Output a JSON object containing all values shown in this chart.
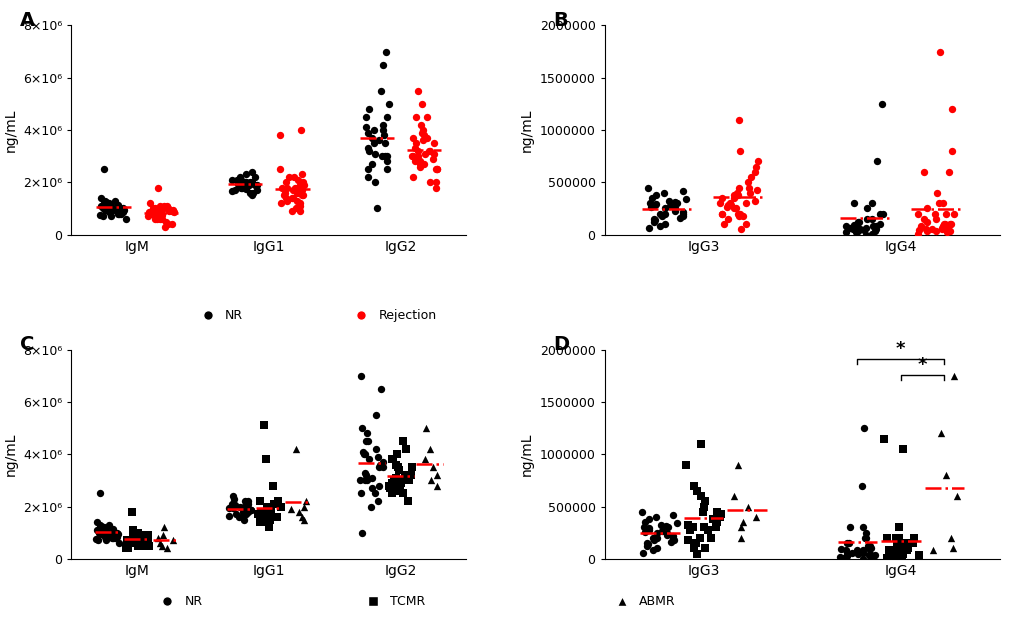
{
  "panel_A": {
    "title": "A",
    "ylabel": "ng/mL",
    "ylim": [
      0,
      8000000
    ],
    "yticks": [
      0,
      2000000,
      4000000,
      6000000,
      8000000
    ],
    "ytick_labels": [
      "0",
      "2×10⁶",
      "4×10⁶",
      "6×10⁶",
      "8×10⁶"
    ],
    "groups": [
      "IgM",
      "IgG1",
      "IgG2"
    ],
    "NR_data": {
      "IgM": [
        900000,
        800000,
        750000,
        1100000,
        1200000,
        1000000,
        950000,
        850000,
        1050000,
        1300000,
        700000,
        1150000,
        1250000,
        900000,
        1400000,
        800000,
        1100000,
        950000,
        2500000,
        1050000,
        800000,
        600000,
        1200000,
        1000000,
        850000,
        950000,
        700000,
        1100000,
        1300000,
        1000000
      ],
      "IgG1": [
        1800000,
        2000000,
        1900000,
        2100000,
        2200000,
        1700000,
        2000000,
        1850000,
        2300000,
        1950000,
        1600000,
        2100000,
        1750000,
        1650000,
        2000000,
        2050000,
        1900000,
        1800000,
        2400000,
        1500000,
        2200000,
        1700000,
        2050000,
        2000000,
        1950000,
        1850000,
        1600000,
        1900000,
        2100000,
        1800000
      ],
      "IgG2": [
        2000000,
        3000000,
        4000000,
        4500000,
        3500000,
        5000000,
        2500000,
        3200000,
        4200000,
        5500000,
        2800000,
        7000000,
        6500000,
        3000000,
        4800000,
        3700000,
        4000000,
        3500000,
        3900000,
        3300000,
        4100000,
        2700000,
        3800000,
        2500000,
        4500000,
        3000000,
        2200000,
        3600000,
        3100000,
        1000000
      ]
    },
    "Rejection_data": {
      "IgM": [
        800000,
        1000000,
        900000,
        1100000,
        850000,
        950000,
        700000,
        1200000,
        600000,
        750000,
        500000,
        900000,
        1800000,
        850000,
        1000000,
        400000,
        800000,
        600000,
        900000,
        700000,
        1100000,
        950000,
        800000,
        750000,
        900000,
        850000,
        600000,
        400000,
        300000,
        950000,
        1000000,
        700000,
        850000,
        1100000,
        600000
      ],
      "IgG1": [
        1800000,
        2000000,
        1500000,
        4000000,
        3800000,
        1700000,
        2200000,
        1400000,
        1800000,
        1600000,
        1300000,
        2100000,
        1900000,
        1500000,
        1200000,
        2500000,
        1800000,
        1600000,
        1400000,
        2000000,
        1700000,
        1900000,
        2200000,
        1500000,
        1100000,
        900000,
        1000000,
        2300000,
        1400000,
        1700000,
        1300000,
        1600000,
        1800000,
        1200000,
        900000
      ],
      "IgG2": [
        3000000,
        4000000,
        5000000,
        5500000,
        3500000,
        4500000,
        3000000,
        2500000,
        3200000,
        3800000,
        2000000,
        4200000,
        3700000,
        2800000,
        3300000,
        2500000,
        3100000,
        2700000,
        3900000,
        3600000,
        2000000,
        3200000,
        4500000,
        2800000,
        3500000,
        2200000,
        1800000,
        3000000,
        3700000,
        3200000,
        2500000,
        2900000,
        3100000,
        2700000,
        2600000
      ]
    }
  },
  "panel_B": {
    "title": "B",
    "ylabel": "ng/mL",
    "ylim": [
      0,
      2000000
    ],
    "yticks": [
      0,
      500000,
      1000000,
      1500000,
      2000000
    ],
    "ytick_labels": [
      "0",
      "500000",
      "1000000",
      "1500000",
      "2000000"
    ],
    "groups": [
      "IgG3",
      "IgG4"
    ],
    "NR_data": {
      "IgG3": [
        250000,
        300000,
        450000,
        200000,
        150000,
        350000,
        280000,
        180000,
        400000,
        320000,
        100000,
        250000,
        380000,
        220000,
        60000,
        310000,
        200000,
        270000,
        120000,
        290000,
        160000,
        340000,
        80000,
        230000,
        420000,
        180000,
        260000,
        300000,
        140000,
        200000
      ],
      "IgG4": [
        0,
        50000,
        100000,
        80000,
        30000,
        200000,
        60000,
        40000,
        150000,
        90000,
        700000,
        120000,
        250000,
        20000,
        10000,
        300000,
        1250000,
        50000,
        30000,
        80000,
        200000,
        60000,
        100000,
        40000,
        150000,
        20000,
        80000,
        300000,
        50000,
        120000
      ]
    },
    "Rejection_data": {
      "IgG3": [
        350000,
        400000,
        250000,
        500000,
        700000,
        800000,
        1100000,
        200000,
        300000,
        450000,
        100000,
        550000,
        380000,
        200000,
        280000,
        600000,
        150000,
        400000,
        650000,
        300000,
        180000,
        430000,
        280000,
        50000,
        320000,
        100000,
        200000,
        450000,
        300000,
        380000,
        260000,
        180000,
        350000,
        200000,
        250000
      ],
      "IgG4": [
        1750000,
        1200000,
        800000,
        600000,
        200000,
        100000,
        50000,
        400000,
        300000,
        600000,
        250000,
        100000,
        50000,
        30000,
        20000,
        10000,
        80000,
        200000,
        50000,
        30000,
        100000,
        200000,
        300000,
        150000,
        80000,
        30000,
        50000,
        100000,
        200000,
        150000,
        80000,
        60000,
        120000,
        40000,
        70000
      ]
    }
  },
  "panel_C": {
    "title": "C",
    "ylabel": "ng/mL",
    "ylim": [
      0,
      8000000
    ],
    "yticks": [
      0,
      2000000,
      4000000,
      6000000,
      8000000
    ],
    "ytick_labels": [
      "0",
      "2×10⁶",
      "4×10⁶",
      "6×10⁶",
      "8×10⁶"
    ],
    "groups": [
      "IgM",
      "IgG1",
      "IgG2"
    ],
    "NR_data": {
      "IgM": [
        900000,
        800000,
        750000,
        1100000,
        1200000,
        1000000,
        950000,
        850000,
        1050000,
        1300000,
        700000,
        1150000,
        1250000,
        900000,
        1400000,
        800000,
        1100000,
        950000,
        2500000,
        1050000,
        800000,
        600000,
        1200000,
        1000000,
        850000,
        950000,
        700000,
        1100000,
        1300000,
        1000000
      ],
      "IgG1": [
        1800000,
        2000000,
        1900000,
        2100000,
        2200000,
        1700000,
        2000000,
        1850000,
        2300000,
        1950000,
        1600000,
        2100000,
        1750000,
        1650000,
        2000000,
        2050000,
        1900000,
        1800000,
        2400000,
        1500000,
        2200000,
        1700000,
        2050000,
        2000000,
        1950000,
        1850000,
        1600000,
        1900000,
        2100000,
        1800000
      ],
      "IgG2": [
        2000000,
        3000000,
        4000000,
        4500000,
        3500000,
        5000000,
        2500000,
        3200000,
        4200000,
        5500000,
        2800000,
        7000000,
        6500000,
        3000000,
        4800000,
        3700000,
        4000000,
        3500000,
        3900000,
        3300000,
        4100000,
        2700000,
        3800000,
        2500000,
        4500000,
        3000000,
        2200000,
        3600000,
        3100000,
        1000000
      ]
    },
    "TCMR_data": {
      "IgM": [
        800000,
        700000,
        900000,
        500000,
        600000,
        400000,
        800000,
        750000,
        1000000,
        850000,
        600000,
        1000000,
        700000,
        500000,
        600000,
        800000,
        1800000,
        900000,
        1100000,
        700000,
        600000,
        500000,
        400000,
        800000,
        700000,
        600000,
        1000000,
        900000
      ],
      "IgG1": [
        2200000,
        1800000,
        5100000,
        1500000,
        2000000,
        1400000,
        2800000,
        2000000,
        1600000,
        3800000,
        1900000,
        2200000,
        1400000,
        1600000,
        1800000,
        1500000,
        1700000,
        2100000,
        1800000,
        1600000,
        1500000,
        1200000,
        1400000,
        2000000,
        1800000,
        1500000,
        1700000,
        1600000
      ],
      "IgG2": [
        3500000,
        3200000,
        4200000,
        4500000,
        2500000,
        3800000,
        2700000,
        3000000,
        2500000,
        3200000,
        2800000,
        3500000,
        2200000,
        3000000,
        2700000,
        2800000,
        3100000,
        2900000,
        3400000,
        3600000,
        2500000,
        2900000,
        3100000,
        4000000,
        2600000,
        3200000,
        3800000,
        3000000
      ]
    },
    "ABMR_data": {
      "IgM": [
        700000,
        600000,
        800000,
        1200000,
        500000,
        400000,
        900000
      ],
      "IgG1": [
        1500000,
        4200000,
        1800000,
        2200000,
        1600000,
        2000000,
        1900000
      ],
      "IgG2": [
        5000000,
        3800000,
        3200000,
        2800000,
        3500000,
        3000000,
        4200000
      ]
    }
  },
  "panel_D": {
    "title": "D",
    "ylabel": "ng/mL",
    "ylim": [
      0,
      2000000
    ],
    "yticks": [
      0,
      500000,
      1000000,
      1500000,
      2000000
    ],
    "ytick_labels": [
      "0",
      "500000",
      "1000000",
      "1500000",
      "2000000"
    ],
    "groups": [
      "IgG3",
      "IgG4"
    ],
    "NR_data": {
      "IgG3": [
        250000,
        300000,
        450000,
        200000,
        150000,
        350000,
        280000,
        180000,
        400000,
        320000,
        100000,
        250000,
        380000,
        220000,
        60000,
        310000,
        200000,
        270000,
        120000,
        290000,
        160000,
        340000,
        80000,
        230000,
        420000,
        180000,
        260000,
        300000,
        140000,
        200000
      ],
      "IgG4": [
        0,
        50000,
        100000,
        80000,
        30000,
        200000,
        60000,
        40000,
        150000,
        90000,
        700000,
        120000,
        250000,
        20000,
        10000,
        300000,
        1250000,
        50000,
        30000,
        80000,
        200000,
        60000,
        100000,
        40000,
        150000,
        20000,
        80000,
        300000,
        50000,
        120000
      ]
    },
    "TCMR_data": {
      "IgG3": [
        350000,
        400000,
        300000,
        500000,
        700000,
        900000,
        1100000,
        200000,
        300000,
        450000,
        100000,
        550000,
        380000,
        200000,
        280000,
        600000,
        150000,
        400000,
        650000,
        300000,
        180000,
        430000,
        280000,
        50000,
        320000,
        100000,
        200000,
        450000
      ],
      "IgG4": [
        200000,
        100000,
        50000,
        30000,
        20000,
        10000,
        80000,
        200000,
        50000,
        30000,
        100000,
        200000,
        300000,
        150000,
        80000,
        30000,
        50000,
        100000,
        200000,
        150000,
        80000,
        60000,
        120000,
        40000,
        70000,
        1050000,
        1150000,
        150000
      ]
    },
    "ABMR_data": {
      "IgG3": [
        400000,
        900000,
        600000,
        350000,
        200000,
        500000,
        300000
      ],
      "IgG4": [
        1750000,
        1200000,
        800000,
        600000,
        200000,
        100000,
        80000
      ]
    }
  },
  "colors": {
    "NR": "#000000",
    "Rejection": "#ff0000",
    "mean_line": "#ff0000"
  },
  "legend_AB": {
    "NR": {
      "marker": "o",
      "color": "#000000",
      "label": "NR"
    },
    "Rejection": {
      "marker": "o",
      "color": "#ff0000",
      "label": "Rejection"
    }
  },
  "legend_CD": {
    "NR": {
      "marker": "o",
      "color": "#000000",
      "label": "NR"
    },
    "TCMR": {
      "marker": "s",
      "color": "#000000",
      "label": "TCMR"
    },
    "ABMR": {
      "marker": "^",
      "color": "#000000",
      "label": "ABMR"
    }
  }
}
